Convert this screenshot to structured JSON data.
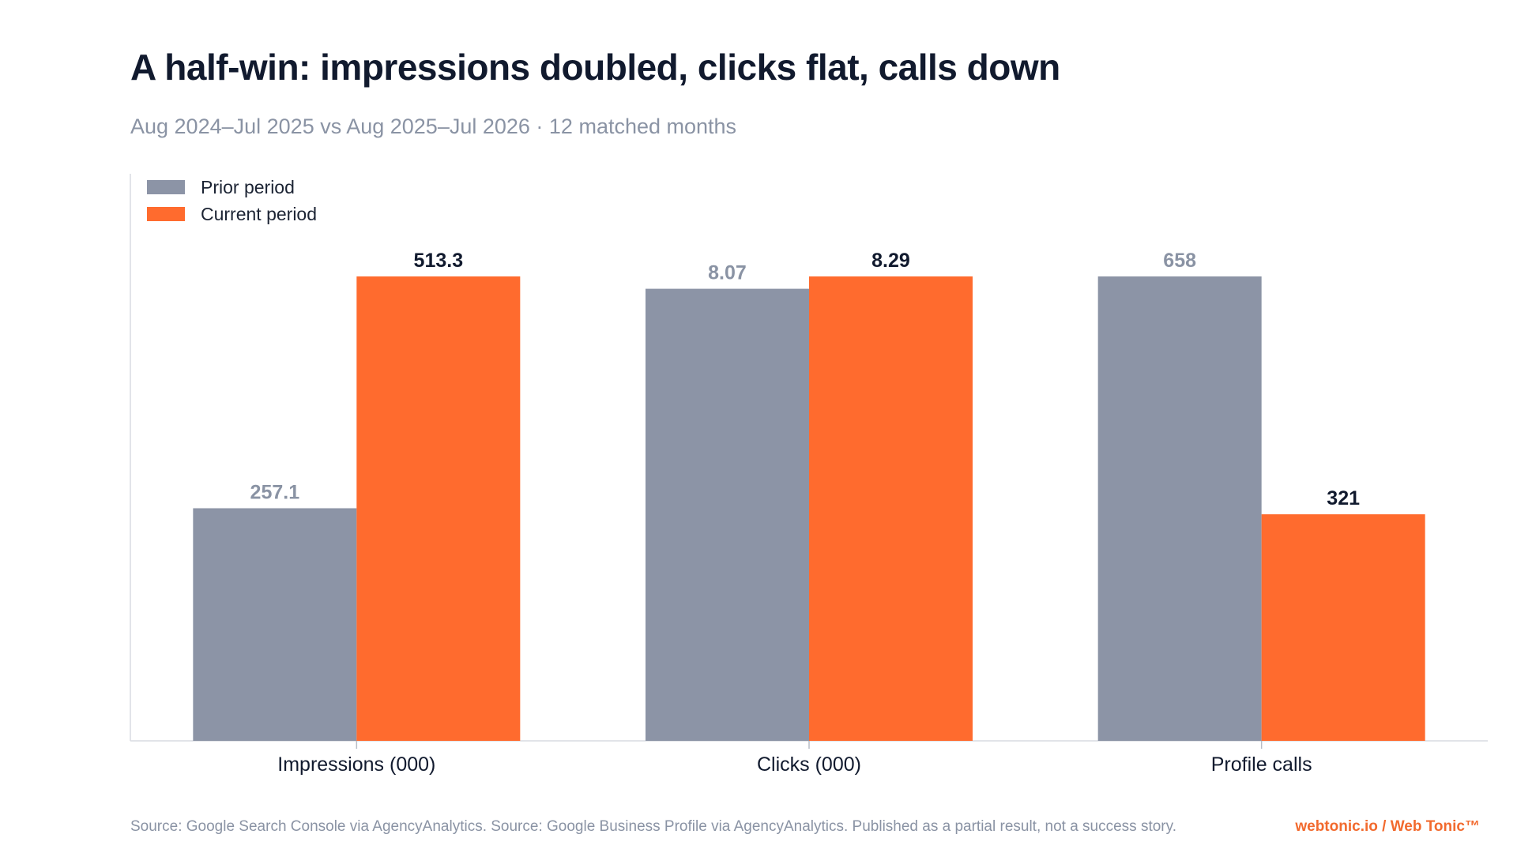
{
  "title": "A half-win: impressions doubled, clicks flat, calls down",
  "subtitle": "Aug 2024–Jul 2025 vs Aug 2025–Jul 2026 · 12 matched months",
  "legend": {
    "prior_label": "Prior period",
    "current_label": "Current period"
  },
  "colors": {
    "prior": "#8c94a6",
    "current": "#ff6b2e",
    "title": "#111a2e",
    "muted": "#8a93a4",
    "brand": "#f26a2e"
  },
  "footer": {
    "source": "Source: Google Search Console via AgencyAnalytics. Source: Google Business Profile via AgencyAnalytics. Published as a partial result, not a success story.",
    "brand": "webtonic.io / Web Tonic™"
  },
  "chart_data": {
    "type": "bar",
    "categories": [
      "Impressions (000)",
      "Clicks (000)",
      "Profile calls"
    ],
    "series": [
      {
        "name": "Prior period",
        "values": [
          257.1,
          8.07,
          658
        ],
        "labels": [
          "257.1",
          "8.07",
          "658"
        ]
      },
      {
        "name": "Current period",
        "values": [
          513.3,
          8.29,
          321
        ],
        "labels": [
          "513.3",
          "8.29",
          "321"
        ]
      }
    ],
    "normalization": "per-category max",
    "grid": false,
    "legend_position": "top-left"
  }
}
